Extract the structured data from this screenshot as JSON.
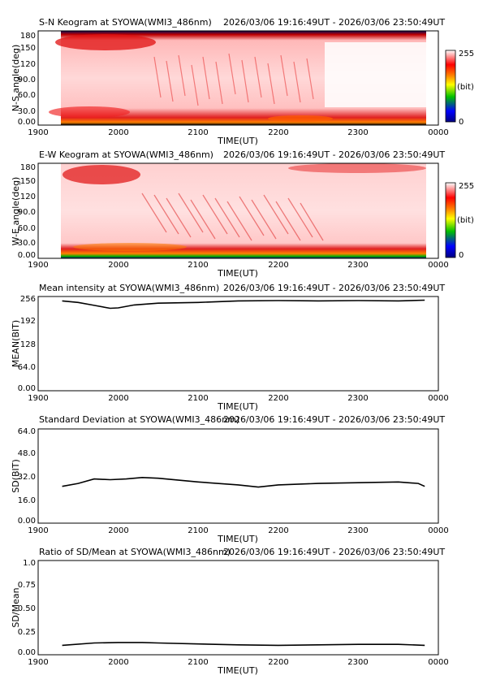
{
  "page": {
    "panels": [
      {
        "kind": "keogram",
        "title": "S-N Keogram at SYOWA(WMI3_486nm)",
        "time_range": "2026/03/06 19:16:49UT - 2026/03/06 23:50:49UT",
        "ylabel": "N-S angle(deg)",
        "xlabel": "TIME(UT)",
        "yticks": [
          "0.00",
          "30.0",
          "60.0",
          "90.0",
          "120",
          "150",
          "180"
        ],
        "xticks": [
          "1900",
          "2000",
          "2100",
          "2200",
          "2300",
          "0000"
        ],
        "colorbar": {
          "max": "255",
          "unit": "(bit)",
          "min": "0"
        }
      },
      {
        "kind": "keogram",
        "title": "E-W Keogram at SYOWA(WMI3_486nm)",
        "time_range": "2026/03/06 19:16:49UT - 2026/03/06 23:50:49UT",
        "ylabel": "W-E angle(deg)",
        "xlabel": "TIME(UT)",
        "yticks": [
          "0.00",
          "30.0",
          "60.0",
          "90.0",
          "120",
          "150",
          "180"
        ],
        "xticks": [
          "1900",
          "2000",
          "2100",
          "2200",
          "2300",
          "0000"
        ],
        "colorbar": {
          "max": "255",
          "unit": "(bit)",
          "min": "0"
        }
      },
      {
        "kind": "line",
        "title": "Mean intensity at SYOWA(WMI3_486nm)",
        "time_range": "2026/03/06 19:16:49UT - 2026/03/06 23:50:49UT",
        "ylabel": "MEAN(BIT)",
        "xlabel": "TIME(UT)",
        "yticks": [
          "0.00",
          "64.0",
          "128",
          "192",
          "256"
        ],
        "xticks": [
          "1900",
          "2000",
          "2100",
          "2200",
          "2300",
          "0000"
        ]
      },
      {
        "kind": "line",
        "title": "Standard Deviation at SYOWA(WMI3_486nm)",
        "time_range": "2026/03/06 19:16:49UT - 2026/03/06 23:50:49UT",
        "ylabel": "SD(BIT)",
        "xlabel": "TIME(UT)",
        "yticks": [
          "0.00",
          "16.0",
          "32.0",
          "48.0",
          "64.0"
        ],
        "xticks": [
          "1900",
          "2000",
          "2100",
          "2200",
          "2300",
          "0000"
        ]
      },
      {
        "kind": "line",
        "title": "Ratio of SD/Mean at SYOWA(WMI3_486nm)",
        "time_range": "2026/03/06 19:16:49UT - 2026/03/06 23:50:49UT",
        "ylabel": "SD/Mean",
        "xlabel": "TIME(UT)",
        "yticks": [
          "0.00",
          "0.25",
          "0.50",
          "0.75",
          "1.0"
        ],
        "xticks": [
          "1900",
          "2000",
          "2100",
          "2200",
          "2300",
          "0000"
        ]
      }
    ]
  },
  "chart_data": [
    {
      "type": "heatmap",
      "title": "S-N Keogram at SYOWA(WMI3_486nm)",
      "xlabel": "TIME(UT)",
      "ylabel": "N-S angle(deg)",
      "xlim": [
        "19:00",
        "24:00"
      ],
      "ylim": [
        0,
        180
      ],
      "data_time_range": [
        "19:16:49",
        "23:50:49"
      ],
      "colorbar": {
        "min": 0,
        "max": 255,
        "unit": "bit",
        "colors": [
          "#000080",
          "#0000ff",
          "#00c000",
          "#ffff00",
          "#ff8000",
          "#ff0000",
          "#ffffff"
        ]
      },
      "features": [
        {
          "angle_range": [
            140,
            175
          ],
          "time_range": [
            "19:40",
            "20:40"
          ],
          "description": "bright red band near north"
        },
        {
          "angle_range": [
            0,
            30
          ],
          "time_range": [
            "19:16",
            "23:50"
          ],
          "description": "bright red band near south"
        },
        {
          "angle_range": [
            30,
            150
          ],
          "time_range": [
            "19:50",
            "22:40"
          ],
          "description": "striated red rays"
        }
      ]
    },
    {
      "type": "heatmap",
      "title": "E-W Keogram at SYOWA(WMI3_486nm)",
      "xlabel": "TIME(UT)",
      "ylabel": "W-E angle(deg)",
      "xlim": [
        "19:00",
        "24:00"
      ],
      "ylim": [
        0,
        180
      ],
      "data_time_range": [
        "19:16:49",
        "23:50:49"
      ],
      "colorbar": {
        "min": 0,
        "max": 255,
        "unit": "bit",
        "colors": [
          "#000080",
          "#0000ff",
          "#00c000",
          "#ffff00",
          "#ff8000",
          "#ff0000",
          "#ffffff"
        ]
      },
      "features": [
        {
          "angle_range": [
            0,
            20
          ],
          "time_range": [
            "19:16",
            "23:50"
          ],
          "description": "bright red/orange band near west"
        },
        {
          "angle_range": [
            130,
            180
          ],
          "time_range": [
            "19:30",
            "20:20"
          ],
          "description": "bright red band near east"
        },
        {
          "angle_range": [
            140,
            180
          ],
          "time_range": [
            "22:00",
            "23:50"
          ],
          "description": "red band near east"
        },
        {
          "angle_range": [
            30,
            120
          ],
          "time_range": [
            "19:40",
            "22:50"
          ],
          "description": "diagonal red rays"
        }
      ]
    },
    {
      "type": "line",
      "title": "Mean intensity at SYOWA(WMI3_486nm)",
      "xlabel": "TIME(UT)",
      "ylabel": "MEAN(BIT)",
      "xlim": [
        19,
        24
      ],
      "ylim": [
        0,
        256
      ],
      "series": [
        {
          "values": [
            [
              19.3,
              244
            ],
            [
              19.5,
              240
            ],
            [
              19.7,
              232
            ],
            [
              19.9,
              224
            ],
            [
              20.0,
              225
            ],
            [
              20.2,
              233
            ],
            [
              20.5,
              238
            ],
            [
              21.0,
              240
            ],
            [
              21.5,
              244
            ],
            [
              22.0,
              245
            ],
            [
              22.5,
              244
            ],
            [
              23.0,
              245
            ],
            [
              23.5,
              244
            ],
            [
              23.83,
              246
            ]
          ]
        }
      ]
    },
    {
      "type": "line",
      "title": "Standard Deviation at SYOWA(WMI3_486nm)",
      "xlabel": "TIME(UT)",
      "ylabel": "SD(BIT)",
      "xlim": [
        19,
        24
      ],
      "ylim": [
        0,
        64
      ],
      "series": [
        {
          "values": [
            [
              19.3,
              25
            ],
            [
              19.5,
              27
            ],
            [
              19.7,
              30
            ],
            [
              19.9,
              29.5
            ],
            [
              20.1,
              30
            ],
            [
              20.3,
              31
            ],
            [
              20.5,
              30.5
            ],
            [
              21.0,
              28
            ],
            [
              21.5,
              26
            ],
            [
              21.75,
              24.5
            ],
            [
              22.0,
              26
            ],
            [
              22.5,
              27
            ],
            [
              23.0,
              27.5
            ],
            [
              23.5,
              28
            ],
            [
              23.75,
              27
            ],
            [
              23.83,
              25
            ]
          ]
        }
      ]
    },
    {
      "type": "line",
      "title": "Ratio of SD/Mean at SYOWA(WMI3_486nm)",
      "xlabel": "TIME(UT)",
      "ylabel": "SD/Mean",
      "xlim": [
        19,
        24
      ],
      "ylim": [
        0,
        1.0
      ],
      "series": [
        {
          "values": [
            [
              19.3,
              0.1
            ],
            [
              19.7,
              0.125
            ],
            [
              20.0,
              0.13
            ],
            [
              20.3,
              0.13
            ],
            [
              20.5,
              0.125
            ],
            [
              21.0,
              0.115
            ],
            [
              21.5,
              0.105
            ],
            [
              22.0,
              0.1
            ],
            [
              22.5,
              0.105
            ],
            [
              23.0,
              0.11
            ],
            [
              23.5,
              0.11
            ],
            [
              23.83,
              0.1
            ]
          ]
        }
      ]
    }
  ]
}
